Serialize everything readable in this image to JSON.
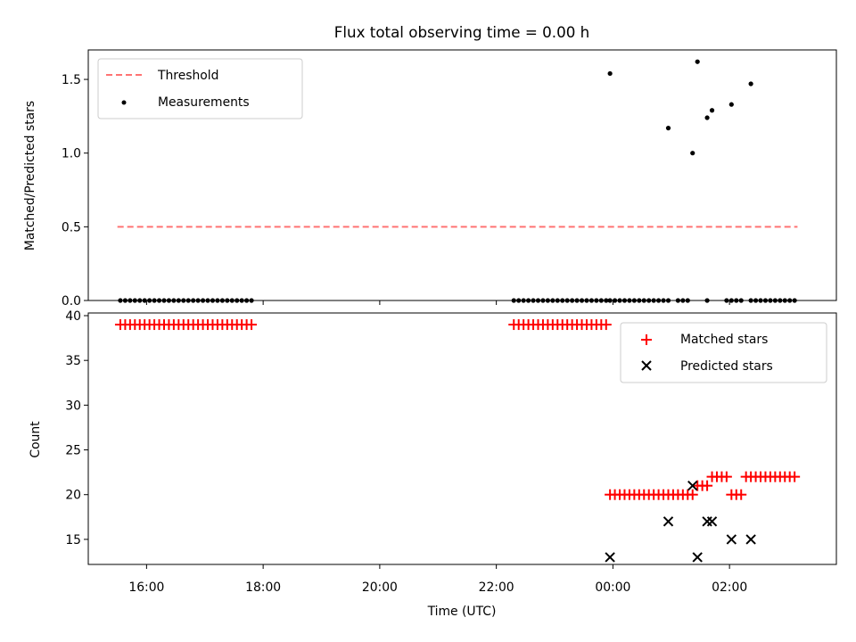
{
  "chart_data": [
    {
      "type": "scatter",
      "title": "Flux total observing time = 0.00 h",
      "xlabel": "",
      "ylabel": "Matched/Predicted stars",
      "ylim": [
        0,
        1.7
      ],
      "yticks": [
        0.0,
        0.5,
        1.0,
        1.5
      ],
      "ytick_labels": [
        "0.0",
        "0.5",
        "1.0",
        "1.5"
      ],
      "xlim": [
        "15:00",
        "03:50"
      ],
      "xticks": [
        "16:00",
        "18:00",
        "20:00",
        "22:00",
        "00:00",
        "02:00"
      ],
      "legend": {
        "position": "top-left",
        "entries": [
          "Threshold",
          "Measurements"
        ]
      },
      "threshold": {
        "name": "Threshold",
        "value": 0.5,
        "x_range": [
          "15:30",
          "03:10"
        ],
        "color": "#ff7373",
        "style": "dashed"
      },
      "series": [
        {
          "name": "Measurements",
          "color": "#000000",
          "x": [
            "15:33",
            "15:38",
            "15:43",
            "15:48",
            "15:53",
            "15:58",
            "16:03",
            "16:08",
            "16:13",
            "16:18",
            "16:23",
            "16:28",
            "16:33",
            "16:38",
            "16:43",
            "16:48",
            "16:53",
            "16:58",
            "17:03",
            "17:08",
            "17:13",
            "17:18",
            "17:23",
            "17:28",
            "17:33",
            "17:38",
            "17:43",
            "17:48",
            "22:18",
            "22:23",
            "22:28",
            "22:33",
            "22:38",
            "22:43",
            "22:48",
            "22:53",
            "22:58",
            "23:03",
            "23:08",
            "23:13",
            "23:18",
            "23:23",
            "23:28",
            "23:33",
            "23:38",
            "23:43",
            "23:48",
            "23:53",
            "23:57",
            "00:02",
            "00:07",
            "00:12",
            "00:17",
            "00:22",
            "00:27",
            "00:32",
            "00:37",
            "00:42",
            "00:47",
            "00:52",
            "00:57",
            "01:07",
            "01:12",
            "01:17",
            "01:37",
            "01:57",
            "02:02",
            "02:07",
            "02:12",
            "02:22",
            "02:27",
            "02:32",
            "02:37",
            "02:42",
            "02:47",
            "02:52",
            "02:57",
            "03:02",
            "03:07",
            "23:57",
            "00:57",
            "01:22",
            "01:27",
            "01:37",
            "01:42",
            "02:02",
            "02:22"
          ],
          "y": [
            0,
            0,
            0,
            0,
            0,
            0,
            0,
            0,
            0,
            0,
            0,
            0,
            0,
            0,
            0,
            0,
            0,
            0,
            0,
            0,
            0,
            0,
            0,
            0,
            0,
            0,
            0,
            0,
            0,
            0,
            0,
            0,
            0,
            0,
            0,
            0,
            0,
            0,
            0,
            0,
            0,
            0,
            0,
            0,
            0,
            0,
            0,
            0,
            0,
            0,
            0,
            0,
            0,
            0,
            0,
            0,
            0,
            0,
            0,
            0,
            0,
            0,
            0,
            0,
            0,
            0,
            0,
            0,
            0,
            0,
            0,
            0,
            0,
            0,
            0,
            0,
            0,
            0,
            0,
            1.54,
            1.17,
            1.0,
            1.62,
            1.24,
            1.29,
            1.33,
            1.47
          ]
        }
      ]
    },
    {
      "type": "scatter",
      "title": "",
      "xlabel": "Time (UTC)",
      "ylabel": "Count",
      "ylim": [
        12.2,
        40.3
      ],
      "yticks": [
        15,
        20,
        25,
        30,
        35,
        40
      ],
      "ytick_labels": [
        "15",
        "20",
        "25",
        "30",
        "35",
        "40"
      ],
      "xlim": [
        "15:00",
        "03:50"
      ],
      "xticks": [
        "16:00",
        "18:00",
        "20:00",
        "22:00",
        "00:00",
        "02:00"
      ],
      "xtick_labels": [
        "16:00",
        "18:00",
        "20:00",
        "22:00",
        "00:00",
        "02:00"
      ],
      "legend": {
        "position": "top-right",
        "entries": [
          "Matched stars",
          "Predicted stars"
        ]
      },
      "series": [
        {
          "name": "Matched stars",
          "marker": "plus",
          "color": "#ff0000",
          "x": [
            "15:33",
            "15:38",
            "15:43",
            "15:48",
            "15:53",
            "15:58",
            "16:03",
            "16:08",
            "16:13",
            "16:18",
            "16:23",
            "16:28",
            "16:33",
            "16:38",
            "16:43",
            "16:48",
            "16:53",
            "16:58",
            "17:03",
            "17:08",
            "17:13",
            "17:18",
            "17:23",
            "17:28",
            "17:33",
            "17:38",
            "17:43",
            "17:48",
            "22:18",
            "22:23",
            "22:28",
            "22:33",
            "22:38",
            "22:43",
            "22:48",
            "22:53",
            "22:58",
            "23:03",
            "23:08",
            "23:13",
            "23:18",
            "23:23",
            "23:28",
            "23:33",
            "23:38",
            "23:43",
            "23:48",
            "23:53",
            "23:57",
            "00:02",
            "00:07",
            "00:12",
            "00:17",
            "00:22",
            "00:27",
            "00:32",
            "00:37",
            "00:42",
            "00:47",
            "00:52",
            "00:57",
            "01:02",
            "01:07",
            "01:12",
            "01:17",
            "01:22",
            "01:27",
            "01:32",
            "01:37",
            "01:42",
            "01:47",
            "01:52",
            "01:57",
            "02:02",
            "02:07",
            "02:12",
            "02:17",
            "02:22",
            "02:27",
            "02:32",
            "02:37",
            "02:42",
            "02:47",
            "02:52",
            "02:57",
            "03:02",
            "03:07"
          ],
          "y": [
            39,
            39,
            39,
            39,
            39,
            39,
            39,
            39,
            39,
            39,
            39,
            39,
            39,
            39,
            39,
            39,
            39,
            39,
            39,
            39,
            39,
            39,
            39,
            39,
            39,
            39,
            39,
            39,
            39,
            39,
            39,
            39,
            39,
            39,
            39,
            39,
            39,
            39,
            39,
            39,
            39,
            39,
            39,
            39,
            39,
            39,
            39,
            39,
            20,
            20,
            20,
            20,
            20,
            20,
            20,
            20,
            20,
            20,
            20,
            20,
            20,
            20,
            20,
            20,
            20,
            20,
            21,
            21,
            21,
            22,
            22,
            22,
            22,
            20,
            20,
            20,
            22,
            22,
            22,
            22,
            22,
            22,
            22,
            22,
            22,
            22,
            22
          ]
        },
        {
          "name": "Predicted stars",
          "marker": "x",
          "color": "#000000",
          "x": [
            "23:57",
            "00:57",
            "01:22",
            "01:27",
            "01:37",
            "01:42",
            "02:02",
            "02:22"
          ],
          "y": [
            13,
            17,
            21,
            13,
            17,
            17,
            15,
            15
          ]
        }
      ]
    }
  ]
}
